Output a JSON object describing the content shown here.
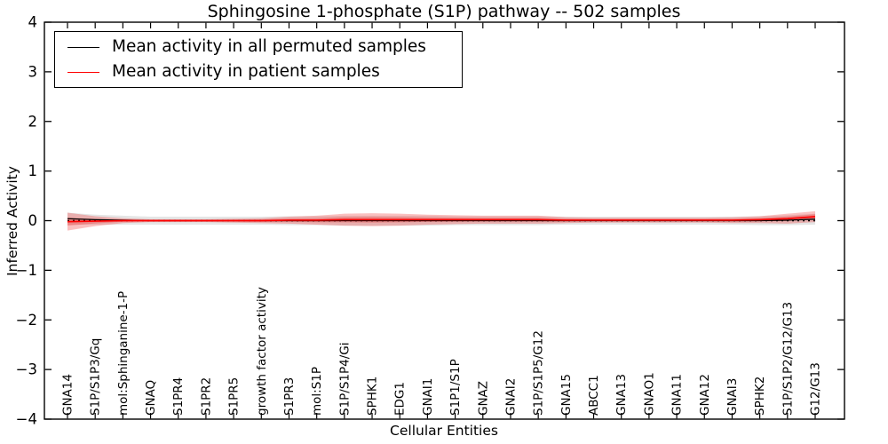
{
  "chart_data": {
    "type": "line",
    "title": "Sphingosine 1-phosphate (S1P) pathway -- 502 samples",
    "xlabel": "Cellular Entities",
    "ylabel": "Inferred Activity",
    "ylim": [
      -4,
      4
    ],
    "yticks": [
      4,
      3,
      2,
      1,
      0,
      -1,
      -2,
      -3,
      -4
    ],
    "grid": false,
    "legend_position": "upper left",
    "zero_line_style": "dotted",
    "categories": [
      "GNA14",
      "S1P/S1P3/Gq",
      "mol:Sphinganine-1-P",
      "GNAQ",
      "S1PR4",
      "S1PR2",
      "S1PR5",
      "growth factor activity",
      "S1PR3",
      "mol:S1P",
      "S1P/S1P4/Gi",
      "SPHK1",
      "EDG1",
      "GNAI1",
      "S1P1/S1P",
      "GNAZ",
      "GNAI2",
      "S1P/S1P5/G12",
      "GNA15",
      "ABCC1",
      "GNA13",
      "GNAO1",
      "GNA11",
      "GNA12",
      "GNAI3",
      "SPHK2",
      "S1P/S1P2/G12/G13",
      "G12/G13"
    ],
    "series": [
      {
        "name": "Mean activity in all permuted samples",
        "color": "#000000",
        "band_color": "#888888",
        "mean": [
          0.04,
          0.02,
          0.01,
          0.0,
          0.0,
          0.0,
          0.0,
          0.0,
          0.0,
          0.0,
          0.0,
          0.0,
          0.0,
          0.0,
          0.0,
          0.0,
          0.0,
          0.0,
          0.0,
          0.0,
          0.0,
          0.0,
          0.0,
          0.0,
          0.0,
          0.0,
          0.01,
          0.03
        ],
        "std": [
          0.12,
          0.1,
          0.09,
          0.08,
          0.08,
          0.08,
          0.08,
          0.08,
          0.09,
          0.09,
          0.1,
          0.1,
          0.1,
          0.1,
          0.09,
          0.09,
          0.09,
          0.09,
          0.08,
          0.08,
          0.08,
          0.08,
          0.08,
          0.08,
          0.08,
          0.09,
          0.1,
          0.11
        ]
      },
      {
        "name": "Mean activity in patient samples",
        "color": "#ff0000",
        "band_color": "#f03030",
        "mean": [
          -0.02,
          -0.01,
          0.0,
          0.0,
          0.0,
          0.0,
          0.0,
          0.0,
          0.01,
          0.01,
          0.02,
          0.02,
          0.02,
          0.02,
          0.02,
          0.02,
          0.02,
          0.02,
          0.01,
          0.01,
          0.01,
          0.01,
          0.01,
          0.01,
          0.01,
          0.02,
          0.04,
          0.08
        ],
        "std": [
          0.18,
          0.1,
          0.05,
          0.03,
          0.03,
          0.03,
          0.04,
          0.05,
          0.07,
          0.09,
          0.12,
          0.13,
          0.12,
          0.1,
          0.09,
          0.08,
          0.08,
          0.08,
          0.06,
          0.05,
          0.05,
          0.05,
          0.05,
          0.05,
          0.06,
          0.07,
          0.1,
          0.11
        ]
      }
    ]
  }
}
